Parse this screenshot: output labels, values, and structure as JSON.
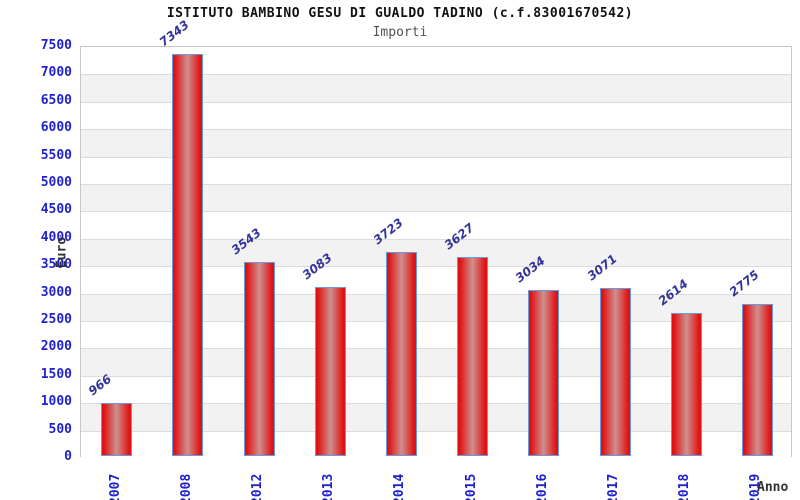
{
  "chart_data": {
    "type": "bar",
    "title": "ISTITUTO BAMBINO GESU DI GUALDO TADINO (c.f.83001670542)",
    "subtitle": "Importi",
    "xlabel": "Anno",
    "ylabel": "Euro",
    "categories": [
      "2007",
      "2008",
      "2012",
      "2013",
      "2014",
      "2015",
      "2016",
      "2017",
      "2018",
      "2019"
    ],
    "values": [
      966,
      7343,
      3543,
      3083,
      3723,
      3627,
      3034,
      3071,
      2614,
      2775
    ],
    "ylim": [
      0,
      7500
    ],
    "ytick_step": 500,
    "grid": true,
    "legend": "none"
  },
  "colors": {
    "title": "#111111",
    "subtitle": "#555555",
    "axis_title": "#333333",
    "tick_label_blue": "#2222cc",
    "value_label_navy": "#333399",
    "bar_red_edge": "#e01212",
    "bar_red_mid": "#cf9090",
    "bar_border_blue": "#6699dd",
    "band_gray": "#f2f2f2",
    "gridline": "#dcdcdc",
    "plot_border": "#c8c8c8"
  }
}
